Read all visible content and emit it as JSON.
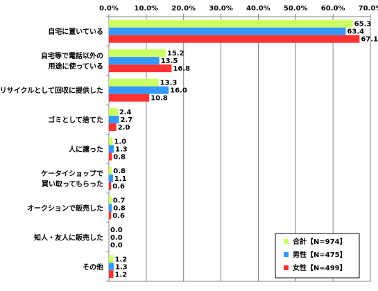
{
  "chart_data": {
    "type": "bar",
    "orientation": "horizontal",
    "categories": [
      [
        "自宅に置いている"
      ],
      [
        "自宅等で電話以外の",
        "用途に使っている"
      ],
      [
        "リサイクルとして回収に提供した"
      ],
      [
        "ゴミとして捨てた"
      ],
      [
        "人に譲った"
      ],
      [
        "ケータイショップで",
        "買い取ってもらった"
      ],
      [
        "オークションで販売した"
      ],
      [
        "知人・友人に販売した"
      ],
      [
        "その他"
      ]
    ],
    "series": [
      {
        "name": "合計【N=974】",
        "color": "#ccff66",
        "values": [
          65.3,
          15.2,
          13.3,
          2.4,
          1.0,
          0.8,
          0.7,
          0.0,
          1.2
        ],
        "labels": [
          "65.3",
          "15.2",
          "13.3",
          "2.4",
          "1.0",
          "0.8",
          "0.7",
          "0.0",
          "1.2"
        ]
      },
      {
        "name": "男性【N=475】",
        "color": "#3399ff",
        "values": [
          63.4,
          13.5,
          16.0,
          2.7,
          1.3,
          1.1,
          0.8,
          0.0,
          1.3
        ],
        "labels": [
          "63.4",
          "13.5",
          "16.0",
          "2.7",
          "1.3",
          "1.1",
          "0.8",
          "0.0",
          "1.3"
        ]
      },
      {
        "name": "女性【N=499】",
        "color": "#ff3333",
        "values": [
          67.1,
          16.8,
          10.8,
          2.0,
          0.8,
          0.6,
          0.6,
          0.0,
          1.2
        ],
        "labels": [
          "67.1",
          "16.8",
          "10.8",
          "2.0",
          "0.8",
          "0.6",
          "0.6",
          "0.0",
          "1.2"
        ]
      }
    ],
    "xlim": [
      0,
      70
    ],
    "xticks": [
      "0.0%",
      "10.0%",
      "20.0%",
      "30.0%",
      "40.0%",
      "50.0%",
      "60.0%",
      "70.0%"
    ],
    "grid": true,
    "legend_position": "bottom-right"
  }
}
